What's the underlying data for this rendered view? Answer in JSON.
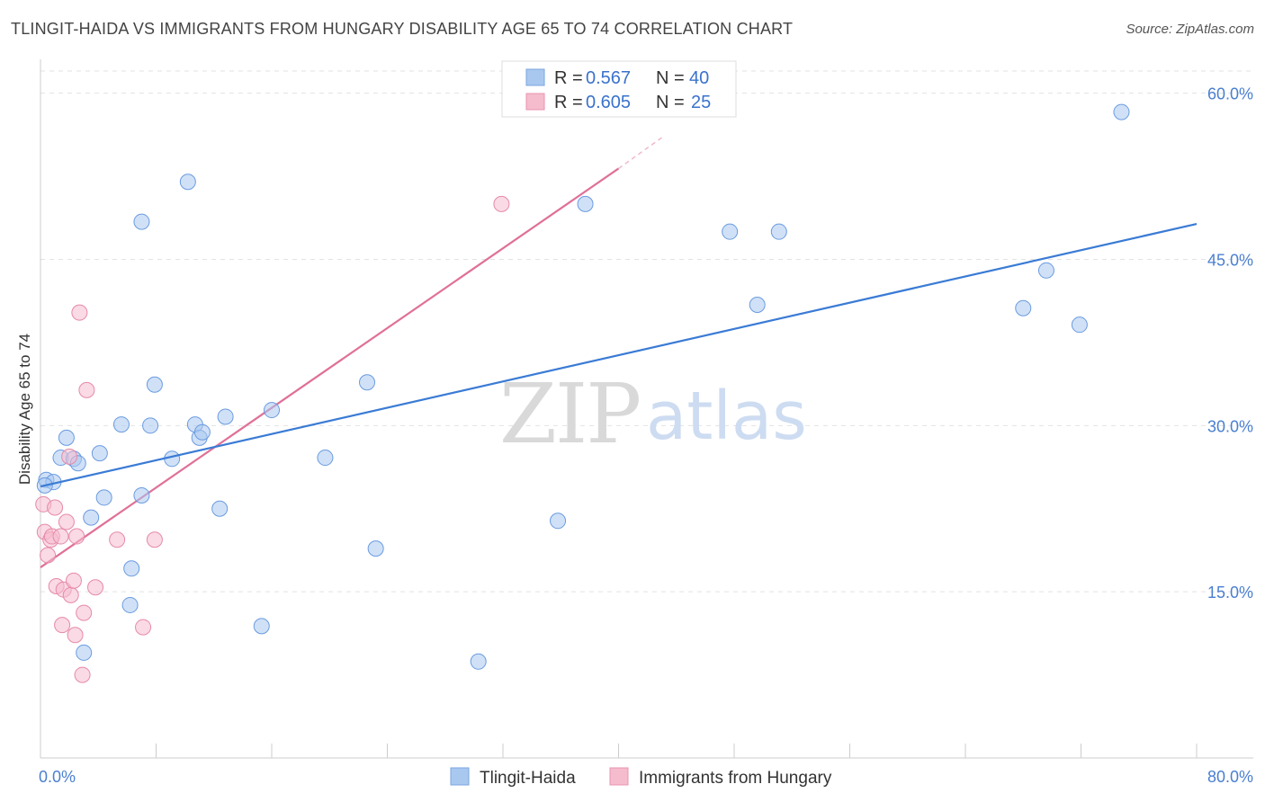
{
  "header": {
    "title": "TLINGIT-HAIDA VS IMMIGRANTS FROM HUNGARY DISABILITY AGE 65 TO 74 CORRELATION CHART",
    "source": "Source: ZipAtlas.com"
  },
  "watermark": {
    "zip": "ZIP",
    "atlas": "atlas"
  },
  "legend": {
    "r_label": "R =",
    "n_label": "N =",
    "series1": {
      "r": "0.567",
      "n": "40"
    },
    "series2": {
      "r": "0.605",
      "n": "25"
    }
  },
  "chart_data": {
    "type": "scatter",
    "title": "TLINGIT-HAIDA VS IMMIGRANTS FROM HUNGARY DISABILITY AGE 65 TO 74 CORRELATION CHART",
    "xlabel": "",
    "ylabel": "Disability Age 65 to 74",
    "xlim": [
      0,
      80
    ],
    "ylim": [
      0,
      62
    ],
    "x_tick_labels": [
      "0.0%",
      "80.0%"
    ],
    "y_ticks": [
      15,
      30,
      45,
      60
    ],
    "y_tick_labels": [
      "15.0%",
      "30.0%",
      "45.0%",
      "60.0%"
    ],
    "colors": {
      "series1": "#3a7bd5",
      "series1_fill": "#a9c8f0",
      "series2": "#e07097",
      "series2_fill": "#f5bccd",
      "tick": "#4a7fd0"
    },
    "series": [
      {
        "name": "Tlingit-Haida",
        "r": 0.567,
        "n": 40,
        "trend": {
          "x": [
            0,
            80
          ],
          "y": [
            24.5,
            48.2
          ]
        },
        "points": [
          [
            0.4,
            25.1
          ],
          [
            0.9,
            24.9
          ],
          [
            1.4,
            27.1
          ],
          [
            1.8,
            28.9
          ],
          [
            2.3,
            27.0
          ],
          [
            2.6,
            26.6
          ],
          [
            3.5,
            21.7
          ],
          [
            4.1,
            27.5
          ],
          [
            4.4,
            23.5
          ],
          [
            5.6,
            30.1
          ],
          [
            6.3,
            17.1
          ],
          [
            6.2,
            13.8
          ],
          [
            7.0,
            23.7
          ],
          [
            7.0,
            48.4
          ],
          [
            7.6,
            30.0
          ],
          [
            7.9,
            33.7
          ],
          [
            9.1,
            27.0
          ],
          [
            10.2,
            52.0
          ],
          [
            10.7,
            30.1
          ],
          [
            11.0,
            28.9
          ],
          [
            11.2,
            29.4
          ],
          [
            12.4,
            22.5
          ],
          [
            12.8,
            30.8
          ],
          [
            3.0,
            9.5
          ],
          [
            15.3,
            11.9
          ],
          [
            16.0,
            31.4
          ],
          [
            19.7,
            27.1
          ],
          [
            22.6,
            33.9
          ],
          [
            23.2,
            18.9
          ],
          [
            30.3,
            8.7
          ],
          [
            35.8,
            21.4
          ],
          [
            37.7,
            50.0
          ],
          [
            47.7,
            47.5
          ],
          [
            49.6,
            40.9
          ],
          [
            51.1,
            47.5
          ],
          [
            68.0,
            40.6
          ],
          [
            69.6,
            44.0
          ],
          [
            71.9,
            39.1
          ],
          [
            74.8,
            58.3
          ],
          [
            0.3,
            24.6
          ]
        ]
      },
      {
        "name": "Immigrants from Hungary",
        "r": 0.605,
        "n": 25,
        "trend": {
          "x": [
            0,
            40
          ],
          "y": [
            17.2,
            53.2
          ]
        },
        "trend_dashed": {
          "x": [
            40,
            43
          ],
          "y": [
            53.2,
            56.0
          ]
        },
        "points": [
          [
            0.2,
            22.9
          ],
          [
            0.3,
            20.4
          ],
          [
            0.5,
            18.3
          ],
          [
            0.7,
            19.7
          ],
          [
            0.8,
            20.0
          ],
          [
            1.0,
            22.6
          ],
          [
            1.1,
            15.5
          ],
          [
            1.4,
            20.0
          ],
          [
            1.5,
            12.0
          ],
          [
            1.6,
            15.2
          ],
          [
            1.8,
            21.3
          ],
          [
            2.0,
            27.2
          ],
          [
            2.1,
            14.7
          ],
          [
            2.3,
            16.0
          ],
          [
            2.4,
            11.1
          ],
          [
            2.5,
            20.0
          ],
          [
            2.7,
            40.2
          ],
          [
            3.0,
            13.1
          ],
          [
            3.2,
            33.2
          ],
          [
            3.8,
            15.4
          ],
          [
            2.9,
            7.5
          ],
          [
            5.3,
            19.7
          ],
          [
            7.1,
            11.8
          ],
          [
            7.9,
            19.7
          ],
          [
            31.9,
            50.0
          ]
        ]
      }
    ]
  }
}
